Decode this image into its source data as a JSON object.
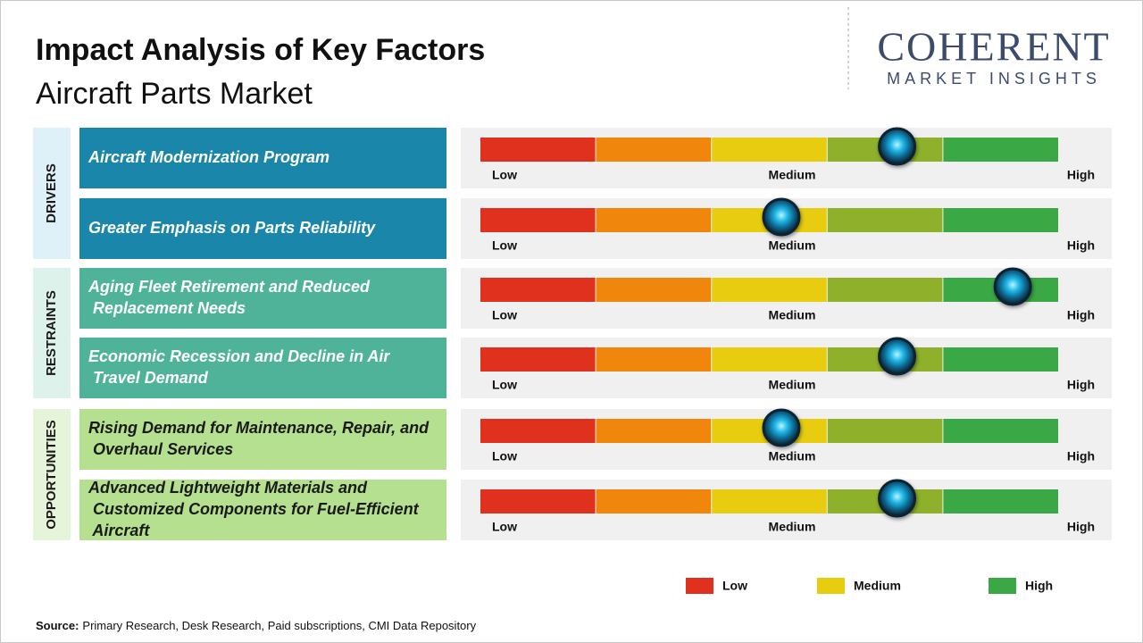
{
  "header": {
    "title": "Impact Analysis of Key Factors",
    "subtitle": "Aircraft Parts Market"
  },
  "logo": {
    "name": "COHERENT",
    "tagline": "MARKET INSIGHTS"
  },
  "scale": {
    "range": [
      0,
      5
    ],
    "labels": [
      "Low",
      "Medium",
      "High"
    ],
    "segment_colors": [
      "#e0301e",
      "#f0870c",
      "#e8cc10",
      "#8fb02a",
      "#3aa844"
    ]
  },
  "groups": [
    {
      "label": "DRIVERS",
      "band_color": "#dff1f8",
      "box_color": "#1a87aa",
      "text_color": "#ffffff",
      "factors": [
        {
          "name": "Aircraft Modernization  Program",
          "impact": 3.6
        },
        {
          "name": "Greater  Emphasis on Parts Reliability",
          "impact": 2.6
        }
      ]
    },
    {
      "label": "RESTRAINTS",
      "band_color": "#def2ec",
      "box_color": "#4fb39a",
      "text_color": "#ffffff",
      "factors": [
        {
          "name": "Aging Fleet Retirement  and Reduced Replacement  Needs",
          "impact": 4.6
        },
        {
          "name": "Economic Recession and Decline in Air Travel Demand",
          "impact": 3.6
        }
      ]
    },
    {
      "label": "OPPORTUNITIES",
      "band_color": "#e6f5da",
      "box_color": "#b5e08f",
      "text_color": "#1a1a1a",
      "factors": [
        {
          "name": "Rising Demand for Maintenance, Repair, and Overhaul Services",
          "impact": 2.6
        },
        {
          "name": "Advanced Lightweight Materials and Customized Components for Fuel-Efficient Aircraft",
          "impact": 3.6
        }
      ]
    }
  ],
  "legend": [
    {
      "label": "Low",
      "color": "#e0301e"
    },
    {
      "label": "Medium",
      "color": "#e8cc10"
    },
    {
      "label": "High",
      "color": "#3aa844"
    }
  ],
  "source": {
    "label": "Source:",
    "text": "Primary Research, Desk Research, Paid subscriptions, CMI Data Repository"
  }
}
